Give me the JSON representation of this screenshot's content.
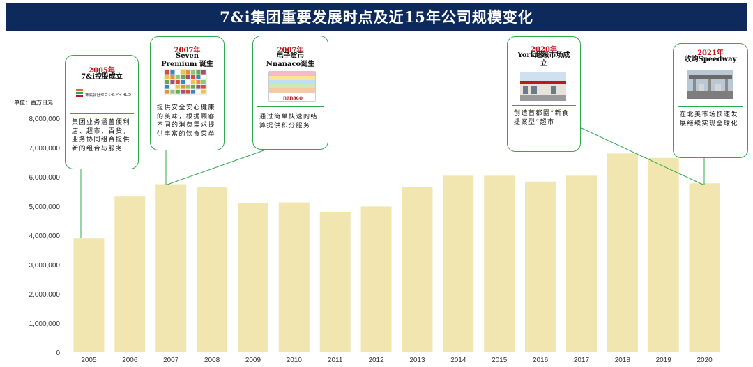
{
  "title": "7&i集团重要发展时点及近15年公司规模变化",
  "unit_label": "单位：百万日元",
  "chart_data": {
    "type": "bar",
    "categories": [
      "2005",
      "2006",
      "2007",
      "2008",
      "2009",
      "2010",
      "2011",
      "2012",
      "2013",
      "2014",
      "2015",
      "2016",
      "2017",
      "2018",
      "2019",
      "2020"
    ],
    "values": [
      3900000,
      5330000,
      5750000,
      5650000,
      5120000,
      5130000,
      4800000,
      4990000,
      5650000,
      6040000,
      6040000,
      5840000,
      6040000,
      6800000,
      6650000,
      5780000
    ],
    "ylim": [
      0,
      8000000
    ],
    "yticks": [
      0,
      1000000,
      2000000,
      3000000,
      4000000,
      5000000,
      6000000,
      7000000,
      8000000
    ],
    "ytick_labels": [
      "0",
      "1,000,000",
      "2,000,000",
      "3,000,000",
      "4,000,000",
      "5,000,000",
      "6,000,000",
      "7,000,000",
      "8,000,000"
    ],
    "bar_color": "#f1e6b0",
    "grid": false
  },
  "callouts": [
    {
      "year": "2005年",
      "heading": "7&i控股成立",
      "logo_text": "株式会社セブン&アイHLDGS.",
      "desc": "集团业务涵盖便利店、超市、百货，业务协同组合提供新的组合与服务",
      "points_to": "2005"
    },
    {
      "year": "2007年",
      "heading": "Seven Premium 诞生",
      "desc": "提供安全安心健康的美味，根据顾客不同的消费需求提供丰富的饮食菜单",
      "points_to": "2007"
    },
    {
      "year": "2007年",
      "heading": "电子货币 Nnanaco诞生",
      "logo_text": "nanaco",
      "desc": "通过简单快速的结算提供积分服务",
      "points_to": "2007"
    },
    {
      "year": "2020年",
      "heading": "York超级市场成立",
      "desc": "创造首都圈“新食提案型”超市",
      "points_to": "2020"
    },
    {
      "year": "2021年",
      "heading": "收购Speedway",
      "desc": "在北美市场快速发展继续实现全球化",
      "points_to": "2020"
    }
  ],
  "colors": {
    "title_bg": "#0e2a5c",
    "accent_red": "#c0171d",
    "connector": "#2fa84f"
  }
}
